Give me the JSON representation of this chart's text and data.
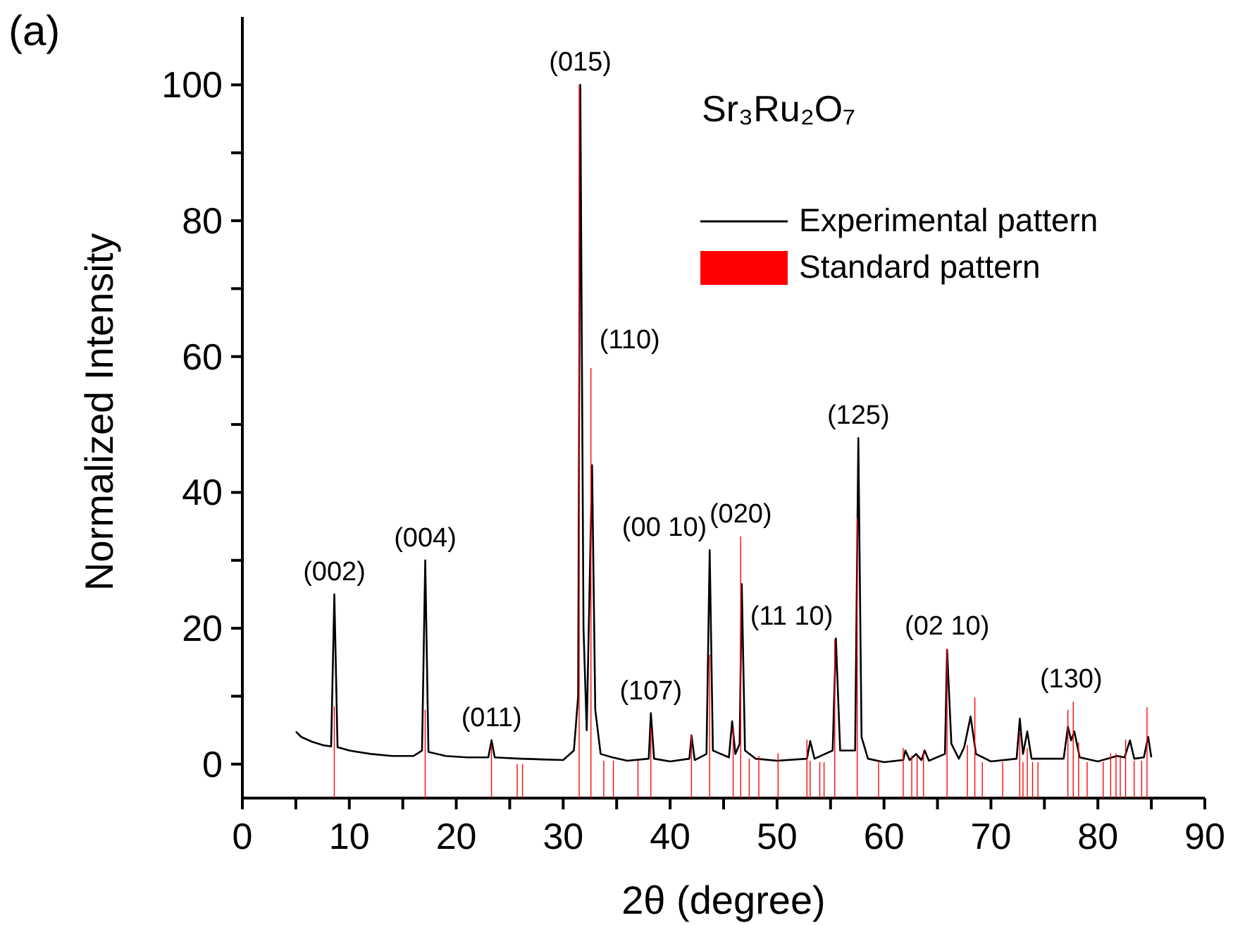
{
  "chart_data": {
    "type": "line",
    "title": "Sr₃Ru₂O₇",
    "xlabel": "2θ (degree)",
    "ylabel": "Normalized Intensity",
    "xlim": [
      0,
      90
    ],
    "xticks": [
      0,
      {
        "value": 5,
        "label": null
      },
      10,
      {
        "value": 15,
        "label": null
      },
      20,
      {
        "value": 25,
        "label": null
      },
      30,
      {
        "value": 35,
        "label": null
      },
      40,
      {
        "value": 45,
        "label": null
      },
      50,
      {
        "value": 55,
        "label": null
      },
      60,
      {
        "value": 65,
        "label": null
      },
      70,
      {
        "value": 75,
        "label": null
      },
      80,
      {
        "value": 85,
        "label": null
      },
      90
    ],
    "ylim": [
      -5,
      110
    ],
    "yticks": [
      0,
      {
        "value": 10,
        "label": null
      },
      20,
      {
        "value": 30,
        "label": null
      },
      40,
      {
        "value": 50,
        "label": null
      },
      60,
      {
        "value": 70,
        "label": null
      },
      80,
      {
        "value": 90,
        "label": null
      },
      100
    ],
    "legend": "top right",
    "series": [
      {
        "name": "Experimental pattern",
        "color": "#000000",
        "x": [
          5.0,
          5.5,
          6.5,
          7.5,
          8.3,
          8.6,
          8.9,
          10,
          12,
          14,
          16,
          16.8,
          17.1,
          17.4,
          19,
          21,
          23.0,
          23.3,
          23.6,
          26,
          28,
          30,
          31.0,
          31.4,
          31.6,
          31.9,
          32.2,
          32.7,
          33.0,
          33.5,
          34.6,
          36,
          38.0,
          38.2,
          38.5,
          40,
          41.8,
          42.0,
          42.3,
          43.4,
          43.7,
          44.0,
          45.5,
          45.8,
          46.1,
          46.5,
          46.7,
          47.0,
          48,
          50,
          52.8,
          53.1,
          53.5,
          55.2,
          55.5,
          55.9,
          57.3,
          57.6,
          57.9,
          58.5,
          60,
          61.8,
          62.0,
          62.4,
          63.0,
          63.5,
          63.8,
          64.2,
          65.7,
          65.9,
          66.3,
          67,
          67.5,
          68.1,
          68.6,
          70,
          72.4,
          72.7,
          73.0,
          73.4,
          73.8,
          76.8,
          77.2,
          77.5,
          77.8,
          78.3,
          80,
          81.8,
          82.5,
          83.0,
          83.4,
          84.3,
          84.7,
          85.0
        ],
        "values": [
          4.8,
          4.0,
          3.3,
          2.8,
          2.6,
          25,
          2.5,
          2.0,
          1.5,
          1.2,
          1.2,
          2.0,
          30,
          1.8,
          1.2,
          1.0,
          1.0,
          3.5,
          1.0,
          0.8,
          0.7,
          0.6,
          2.0,
          10,
          100,
          20,
          5,
          44,
          8,
          1.5,
          1.0,
          0.5,
          0.8,
          7.5,
          0.8,
          0.4,
          0.8,
          4.2,
          0.6,
          1.5,
          31.5,
          2.0,
          1.0,
          6.3,
          1.5,
          3,
          26.5,
          2,
          0.8,
          0.5,
          0.8,
          3.4,
          0.8,
          2,
          18.5,
          2,
          2,
          48,
          4,
          0.8,
          0.3,
          0.6,
          2,
          0.6,
          1.5,
          0.6,
          2,
          0.5,
          1.5,
          16.8,
          3,
          0.8,
          2.5,
          7,
          1.5,
          0.4,
          0.8,
          6.7,
          1.5,
          4.8,
          0.8,
          0.8,
          5.5,
          3.5,
          4.8,
          1.0,
          0.4,
          1.2,
          1.0,
          3.5,
          0.8,
          1.0,
          4.0,
          1.0
        ]
      },
      {
        "name": "Standard pattern",
        "type": "bar",
        "color": "#ff0000",
        "x": [
          8.6,
          17.1,
          23.3,
          25.7,
          26.2,
          31.5,
          32.6,
          33.8,
          34.7,
          37.0,
          38.2,
          42.0,
          43.7,
          45.9,
          46.6,
          47.4,
          48.3,
          50.1,
          52.8,
          53.1,
          54.0,
          54.4,
          55.4,
          57.5,
          59.5,
          61.8,
          62.6,
          63.1,
          63.7,
          65.9,
          67.8,
          68.5,
          69.2,
          71.1,
          72.7,
          73.0,
          73.4,
          73.9,
          74.4,
          77.2,
          77.7,
          78.2,
          79.0,
          80.5,
          81.2,
          81.7,
          82.1,
          82.6,
          83.4,
          84.1,
          84.6
        ],
        "base": [
          -5,
          -5,
          -5,
          -5,
          -5,
          -5,
          -5,
          -5,
          -5,
          -5,
          -5,
          -5,
          -5,
          -5,
          -5,
          -5,
          -5,
          -5,
          -5,
          -5,
          -5,
          -5,
          -5,
          -5,
          -5,
          -5,
          -5,
          -5,
          -5,
          -5,
          -5,
          -5,
          -5,
          -5,
          -5,
          -5,
          -5,
          -5,
          -5,
          -5,
          -5,
          -5,
          -5,
          -5,
          -5,
          -5,
          -5,
          -5,
          -5,
          -5,
          -5
        ],
        "values": [
          13.5,
          13,
          7.8,
          5,
          5,
          105,
          63.3,
          5.5,
          5.5,
          5.5,
          10.4,
          9.4,
          21.1,
          10.2,
          38.5,
          5.8,
          6.2,
          6.6,
          8.6,
          5.5,
          5.3,
          5.3,
          23.4,
          41.3,
          5.5,
          7.4,
          6.2,
          6.2,
          7,
          22,
          7.8,
          14.8,
          5.3,
          5.3,
          9.6,
          5.3,
          7.4,
          5.3,
          5.3,
          13,
          14.2,
          8.2,
          5.3,
          5.3,
          6.6,
          6.6,
          6,
          8.6,
          5.5,
          5.5,
          13.4
        ]
      }
    ],
    "annotations": [
      "(a)",
      {
        "text": "(002)",
        "x": 8.6,
        "y": 25
      },
      {
        "text": "(004)",
        "x": 17.1,
        "y": 30
      },
      {
        "text": "(011)",
        "x": 23.3,
        "y": 3.5
      },
      {
        "text": "(015)",
        "x": 31.6,
        "y": 100
      },
      {
        "text": "(110)",
        "x": 32.6,
        "y": 58.3
      },
      {
        "text": "(107)",
        "x": 38.2,
        "y": 7.5
      },
      {
        "text": "(00 10)",
        "x": 43.7,
        "y": 31.5
      },
      {
        "text": "(020)",
        "x": 46.6,
        "y": 33.5
      },
      {
        "text": "(11 10)",
        "x": 55.5,
        "y": 18.5
      },
      {
        "text": "(125)",
        "x": 57.6,
        "y": 48
      },
      {
        "text": "(02 10)",
        "x": 65.9,
        "y": 17
      },
      {
        "text": "(130)",
        "x": 77.5,
        "y": 9.2
      }
    ]
  }
}
